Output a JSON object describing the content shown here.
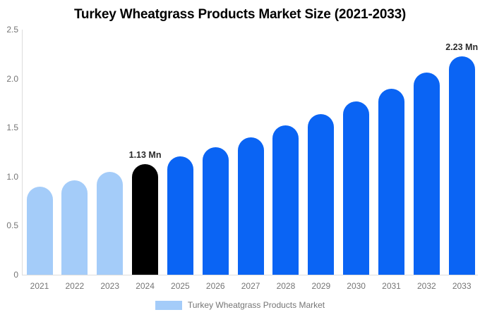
{
  "title": "Turkey Wheatgrass Products Market Size (2021-2033)",
  "chart_data": {
    "type": "bar",
    "title": "Turkey Wheatgrass Products Market Size (2021-2033)",
    "categories": [
      "2021",
      "2022",
      "2023",
      "2024",
      "2025",
      "2026",
      "2027",
      "2028",
      "2029",
      "2030",
      "2031",
      "2032",
      "2033"
    ],
    "values": [
      0.9,
      0.96,
      1.05,
      1.13,
      1.21,
      1.3,
      1.4,
      1.52,
      1.64,
      1.77,
      1.9,
      2.06,
      2.23
    ],
    "unit": "Mn",
    "xlabel": "",
    "ylabel": "",
    "ylim": [
      0,
      2.5
    ],
    "yticks": [
      {
        "v": 0,
        "label": "0"
      },
      {
        "v": 0.5,
        "label": "0.5"
      },
      {
        "v": 1,
        "label": "1.0"
      },
      {
        "v": 1.5,
        "label": "1.5"
      },
      {
        "v": 2,
        "label": "2.0"
      },
      {
        "v": 2.5,
        "label": "2.5"
      }
    ],
    "grid": false,
    "legend_position": "bottom",
    "bar_colors": [
      "#A4CCF9",
      "#A4CCF9",
      "#A4CCF9",
      "#000000",
      "#0A64F4",
      "#0A64F4",
      "#0A64F4",
      "#0A64F4",
      "#0A64F4",
      "#0A64F4",
      "#0A64F4",
      "#0A64F4",
      "#0A64F4"
    ],
    "annotations": [
      {
        "index": 3,
        "category": "2024",
        "text": "1.13 Mn"
      },
      {
        "index": 12,
        "category": "2033",
        "text": "2.23 Mn"
      }
    ]
  },
  "legend": {
    "label": "Turkey Wheatgrass Products Market",
    "swatch_color": "#A4CCF9"
  },
  "colors": {
    "historical_bar": "#A4CCF9",
    "base_year_bar": "#000000",
    "forecast_bar": "#0A64F4",
    "axis_line": "#dddddd",
    "tick_text": "#757575",
    "annotation_text": "#2b2b2b",
    "title_text": "#000000",
    "background": "#ffffff"
  }
}
